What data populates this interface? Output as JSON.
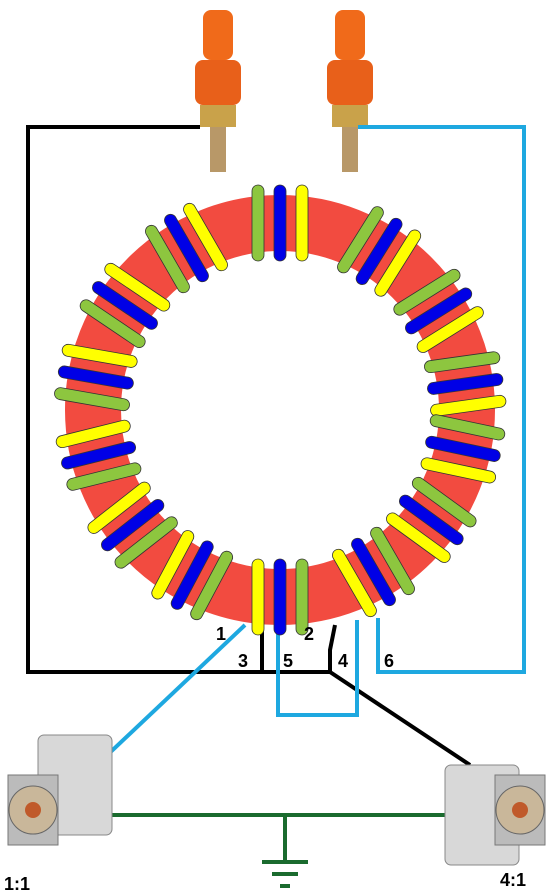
{
  "labels": {
    "tap_1": "1",
    "tap_2": "2",
    "tap_3": "3",
    "tap_4": "4",
    "tap_5": "5",
    "tap_6": "6",
    "ratio_left": "1:1",
    "ratio_right": "4:1"
  }
}
